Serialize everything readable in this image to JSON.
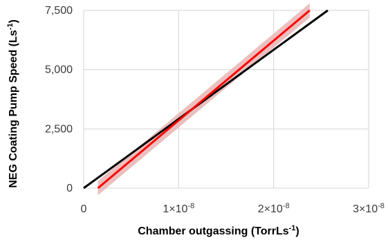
{
  "chart_data": {
    "type": "line",
    "title": "",
    "xlabel": "Chamber outgassing (TorrLs",
    "xlabel_sup": "-1",
    "xlabel_end": ")",
    "ylabel": "NEG Coating Pump Speed (Ls",
    "ylabel_sup": "-1",
    "ylabel_end": ")",
    "xlim": [
      0,
      3e-08
    ],
    "ylim": [
      0,
      7500
    ],
    "grid": true,
    "x_ticks": [
      {
        "value": 0,
        "mant": "0",
        "exp": ""
      },
      {
        "value": 1e-08,
        "mant": "1×10",
        "exp": "-8"
      },
      {
        "value": 2e-08,
        "mant": "2×10",
        "exp": "-8"
      },
      {
        "value": 3e-08,
        "mant": "3×10",
        "exp": "-8"
      }
    ],
    "y_ticks": [
      {
        "value": 0,
        "label": "0"
      },
      {
        "value": 2500,
        "label": "2,500"
      },
      {
        "value": 5000,
        "label": "5,000"
      },
      {
        "value": 7500,
        "label": "7,500"
      }
    ],
    "series": [
      {
        "color": "#000000",
        "points": [
          [
            0,
            0
          ],
          [
            2.57e-08,
            7500
          ]
        ]
      },
      {
        "color": "#ff0000",
        "points": [
          [
            1.5e-09,
            0
          ],
          [
            2.38e-08,
            7500
          ]
        ],
        "band_color": "#e8b4b4",
        "band_halfwidth": 300
      }
    ]
  }
}
